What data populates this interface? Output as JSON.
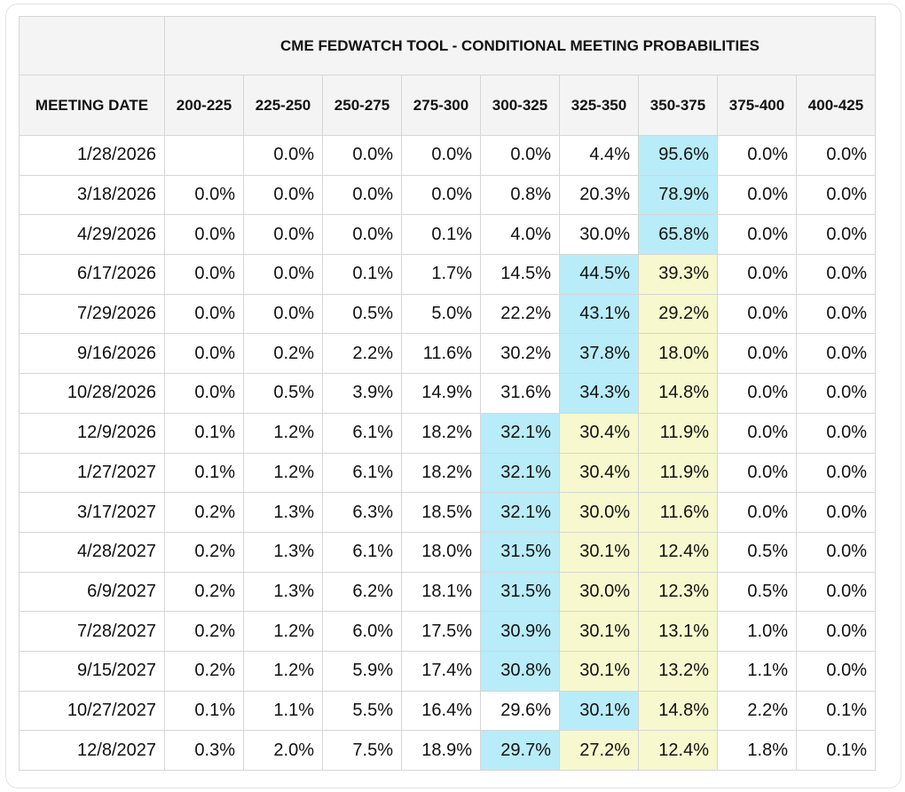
{
  "table": {
    "title": "CME FEDWATCH TOOL - CONDITIONAL MEETING PROBABILITIES",
    "date_header": "MEETING DATE",
    "ranges": [
      "200-225",
      "225-250",
      "250-275",
      "275-300",
      "300-325",
      "325-350",
      "350-375",
      "375-400",
      "400-425"
    ],
    "rows": [
      {
        "date": "1/28/2026",
        "values": [
          "",
          "0.0%",
          "0.0%",
          "0.0%",
          "0.0%",
          "4.4%",
          "95.6%",
          "0.0%",
          "0.0%"
        ],
        "hl": [
          "",
          "",
          "",
          "",
          "",
          "",
          "b",
          "",
          ""
        ]
      },
      {
        "date": "3/18/2026",
        "values": [
          "0.0%",
          "0.0%",
          "0.0%",
          "0.0%",
          "0.8%",
          "20.3%",
          "78.9%",
          "0.0%",
          "0.0%"
        ],
        "hl": [
          "",
          "",
          "",
          "",
          "",
          "",
          "b",
          "",
          ""
        ]
      },
      {
        "date": "4/29/2026",
        "values": [
          "0.0%",
          "0.0%",
          "0.0%",
          "0.1%",
          "4.0%",
          "30.0%",
          "65.8%",
          "0.0%",
          "0.0%"
        ],
        "hl": [
          "",
          "",
          "",
          "",
          "",
          "",
          "b",
          "",
          ""
        ]
      },
      {
        "date": "6/17/2026",
        "values": [
          "0.0%",
          "0.0%",
          "0.1%",
          "1.7%",
          "14.5%",
          "44.5%",
          "39.3%",
          "0.0%",
          "0.0%"
        ],
        "hl": [
          "",
          "",
          "",
          "",
          "",
          "b",
          "y",
          "",
          ""
        ]
      },
      {
        "date": "7/29/2026",
        "values": [
          "0.0%",
          "0.0%",
          "0.5%",
          "5.0%",
          "22.2%",
          "43.1%",
          "29.2%",
          "0.0%",
          "0.0%"
        ],
        "hl": [
          "",
          "",
          "",
          "",
          "",
          "b",
          "y",
          "",
          ""
        ]
      },
      {
        "date": "9/16/2026",
        "values": [
          "0.0%",
          "0.2%",
          "2.2%",
          "11.6%",
          "30.2%",
          "37.8%",
          "18.0%",
          "0.0%",
          "0.0%"
        ],
        "hl": [
          "",
          "",
          "",
          "",
          "",
          "b",
          "y",
          "",
          ""
        ]
      },
      {
        "date": "10/28/2026",
        "values": [
          "0.0%",
          "0.5%",
          "3.9%",
          "14.9%",
          "31.6%",
          "34.3%",
          "14.8%",
          "0.0%",
          "0.0%"
        ],
        "hl": [
          "",
          "",
          "",
          "",
          "",
          "b",
          "y",
          "",
          ""
        ]
      },
      {
        "date": "12/9/2026",
        "values": [
          "0.1%",
          "1.2%",
          "6.1%",
          "18.2%",
          "32.1%",
          "30.4%",
          "11.9%",
          "0.0%",
          "0.0%"
        ],
        "hl": [
          "",
          "",
          "",
          "",
          "b",
          "y",
          "y",
          "",
          ""
        ]
      },
      {
        "date": "1/27/2027",
        "values": [
          "0.1%",
          "1.2%",
          "6.1%",
          "18.2%",
          "32.1%",
          "30.4%",
          "11.9%",
          "0.0%",
          "0.0%"
        ],
        "hl": [
          "",
          "",
          "",
          "",
          "b",
          "y",
          "y",
          "",
          ""
        ]
      },
      {
        "date": "3/17/2027",
        "values": [
          "0.2%",
          "1.3%",
          "6.3%",
          "18.5%",
          "32.1%",
          "30.0%",
          "11.6%",
          "0.0%",
          "0.0%"
        ],
        "hl": [
          "",
          "",
          "",
          "",
          "b",
          "y",
          "y",
          "",
          ""
        ]
      },
      {
        "date": "4/28/2027",
        "values": [
          "0.2%",
          "1.3%",
          "6.1%",
          "18.0%",
          "31.5%",
          "30.1%",
          "12.4%",
          "0.5%",
          "0.0%"
        ],
        "hl": [
          "",
          "",
          "",
          "",
          "b",
          "y",
          "y",
          "",
          ""
        ]
      },
      {
        "date": "6/9/2027",
        "values": [
          "0.2%",
          "1.3%",
          "6.2%",
          "18.1%",
          "31.5%",
          "30.0%",
          "12.3%",
          "0.5%",
          "0.0%"
        ],
        "hl": [
          "",
          "",
          "",
          "",
          "b",
          "y",
          "y",
          "",
          ""
        ]
      },
      {
        "date": "7/28/2027",
        "values": [
          "0.2%",
          "1.2%",
          "6.0%",
          "17.5%",
          "30.9%",
          "30.1%",
          "13.1%",
          "1.0%",
          "0.0%"
        ],
        "hl": [
          "",
          "",
          "",
          "",
          "b",
          "y",
          "y",
          "",
          ""
        ]
      },
      {
        "date": "9/15/2027",
        "values": [
          "0.2%",
          "1.2%",
          "5.9%",
          "17.4%",
          "30.8%",
          "30.1%",
          "13.2%",
          "1.1%",
          "0.0%"
        ],
        "hl": [
          "",
          "",
          "",
          "",
          "b",
          "y",
          "y",
          "",
          ""
        ]
      },
      {
        "date": "10/27/2027",
        "values": [
          "0.1%",
          "1.1%",
          "5.5%",
          "16.4%",
          "29.6%",
          "30.1%",
          "14.8%",
          "2.2%",
          "0.1%"
        ],
        "hl": [
          "",
          "",
          "",
          "",
          "",
          "b",
          "y",
          "",
          ""
        ]
      },
      {
        "date": "12/8/2027",
        "values": [
          "0.3%",
          "2.0%",
          "7.5%",
          "18.9%",
          "29.7%",
          "27.2%",
          "12.4%",
          "1.8%",
          "0.1%"
        ],
        "hl": [
          "",
          "",
          "",
          "",
          "b",
          "y",
          "y",
          "",
          ""
        ]
      }
    ]
  },
  "colors": {
    "highlight_max": "#b8ecf8",
    "highlight_second": "#f7f8cd",
    "header_bg": "#f4f4f4"
  }
}
